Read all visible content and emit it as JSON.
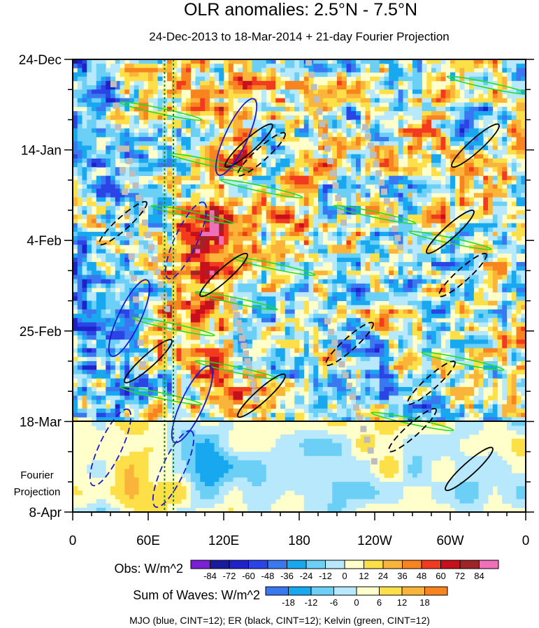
{
  "chart_data": {
    "type": "heatmap",
    "title": "OLR anomalies: 2.5°N - 7.5°N",
    "subtitle": "24-Dec-2013 to 18-Mar-2014 + 21-day Fourier Projection",
    "x_ticks": [
      "0",
      "60E",
      "120E",
      "180",
      "120W",
      "60W",
      "0"
    ],
    "x_tick_lons": [
      0,
      60,
      120,
      180,
      240,
      300,
      360
    ],
    "y_ticks": [
      "24-Dec",
      "14-Jan",
      "4-Feb",
      "25-Feb",
      "18-Mar"
    ],
    "y_tick_days": [
      0,
      21,
      42,
      63,
      84
    ],
    "y_end_day": 105,
    "y_end_label": "8-Apr",
    "projection_label_1": "Fourier",
    "projection_label_2": "Projection",
    "projection_start_day": 84,
    "obs_colorbar": {
      "label": "Obs: W/m^2",
      "levels": [
        -84,
        -72,
        -60,
        -48,
        -36,
        -24,
        -12,
        0,
        12,
        24,
        36,
        48,
        60,
        72,
        84
      ],
      "colors": [
        "#7a1fd6",
        "#1a1a9e",
        "#1e22c8",
        "#2a44e6",
        "#3a78f2",
        "#18a8f0",
        "#6ccff6",
        "#b8e8fb",
        "#ffffcc",
        "#fde048",
        "#fbb43a",
        "#f7841f",
        "#f23a1f",
        "#c8101c",
        "#9e2428",
        "#ef6fb8"
      ]
    },
    "waves_colorbar": {
      "label": "Sum of Waves: W/m^2",
      "levels": [
        -18,
        -12,
        -6,
        0,
        6,
        12,
        18
      ],
      "colors": [
        "#3a78f2",
        "#18a8f0",
        "#6ccff6",
        "#b8e8fb",
        "#ffffcc",
        "#fde048",
        "#fbb43a",
        "#f7841f"
      ]
    },
    "caption": "MJO (blue, CINT=12); ER (black, CINT=12); Kelvin (green, CINT=12)",
    "series": [
      {
        "name": "MJO",
        "color": "#1a1ad0",
        "cint": 12
      },
      {
        "name": "ER",
        "color": "#000000",
        "cint": 12
      },
      {
        "name": "Kelvin",
        "color": "#22dd22",
        "cint": 12
      }
    ],
    "reference_lines_lon": [
      73,
      80
    ]
  }
}
